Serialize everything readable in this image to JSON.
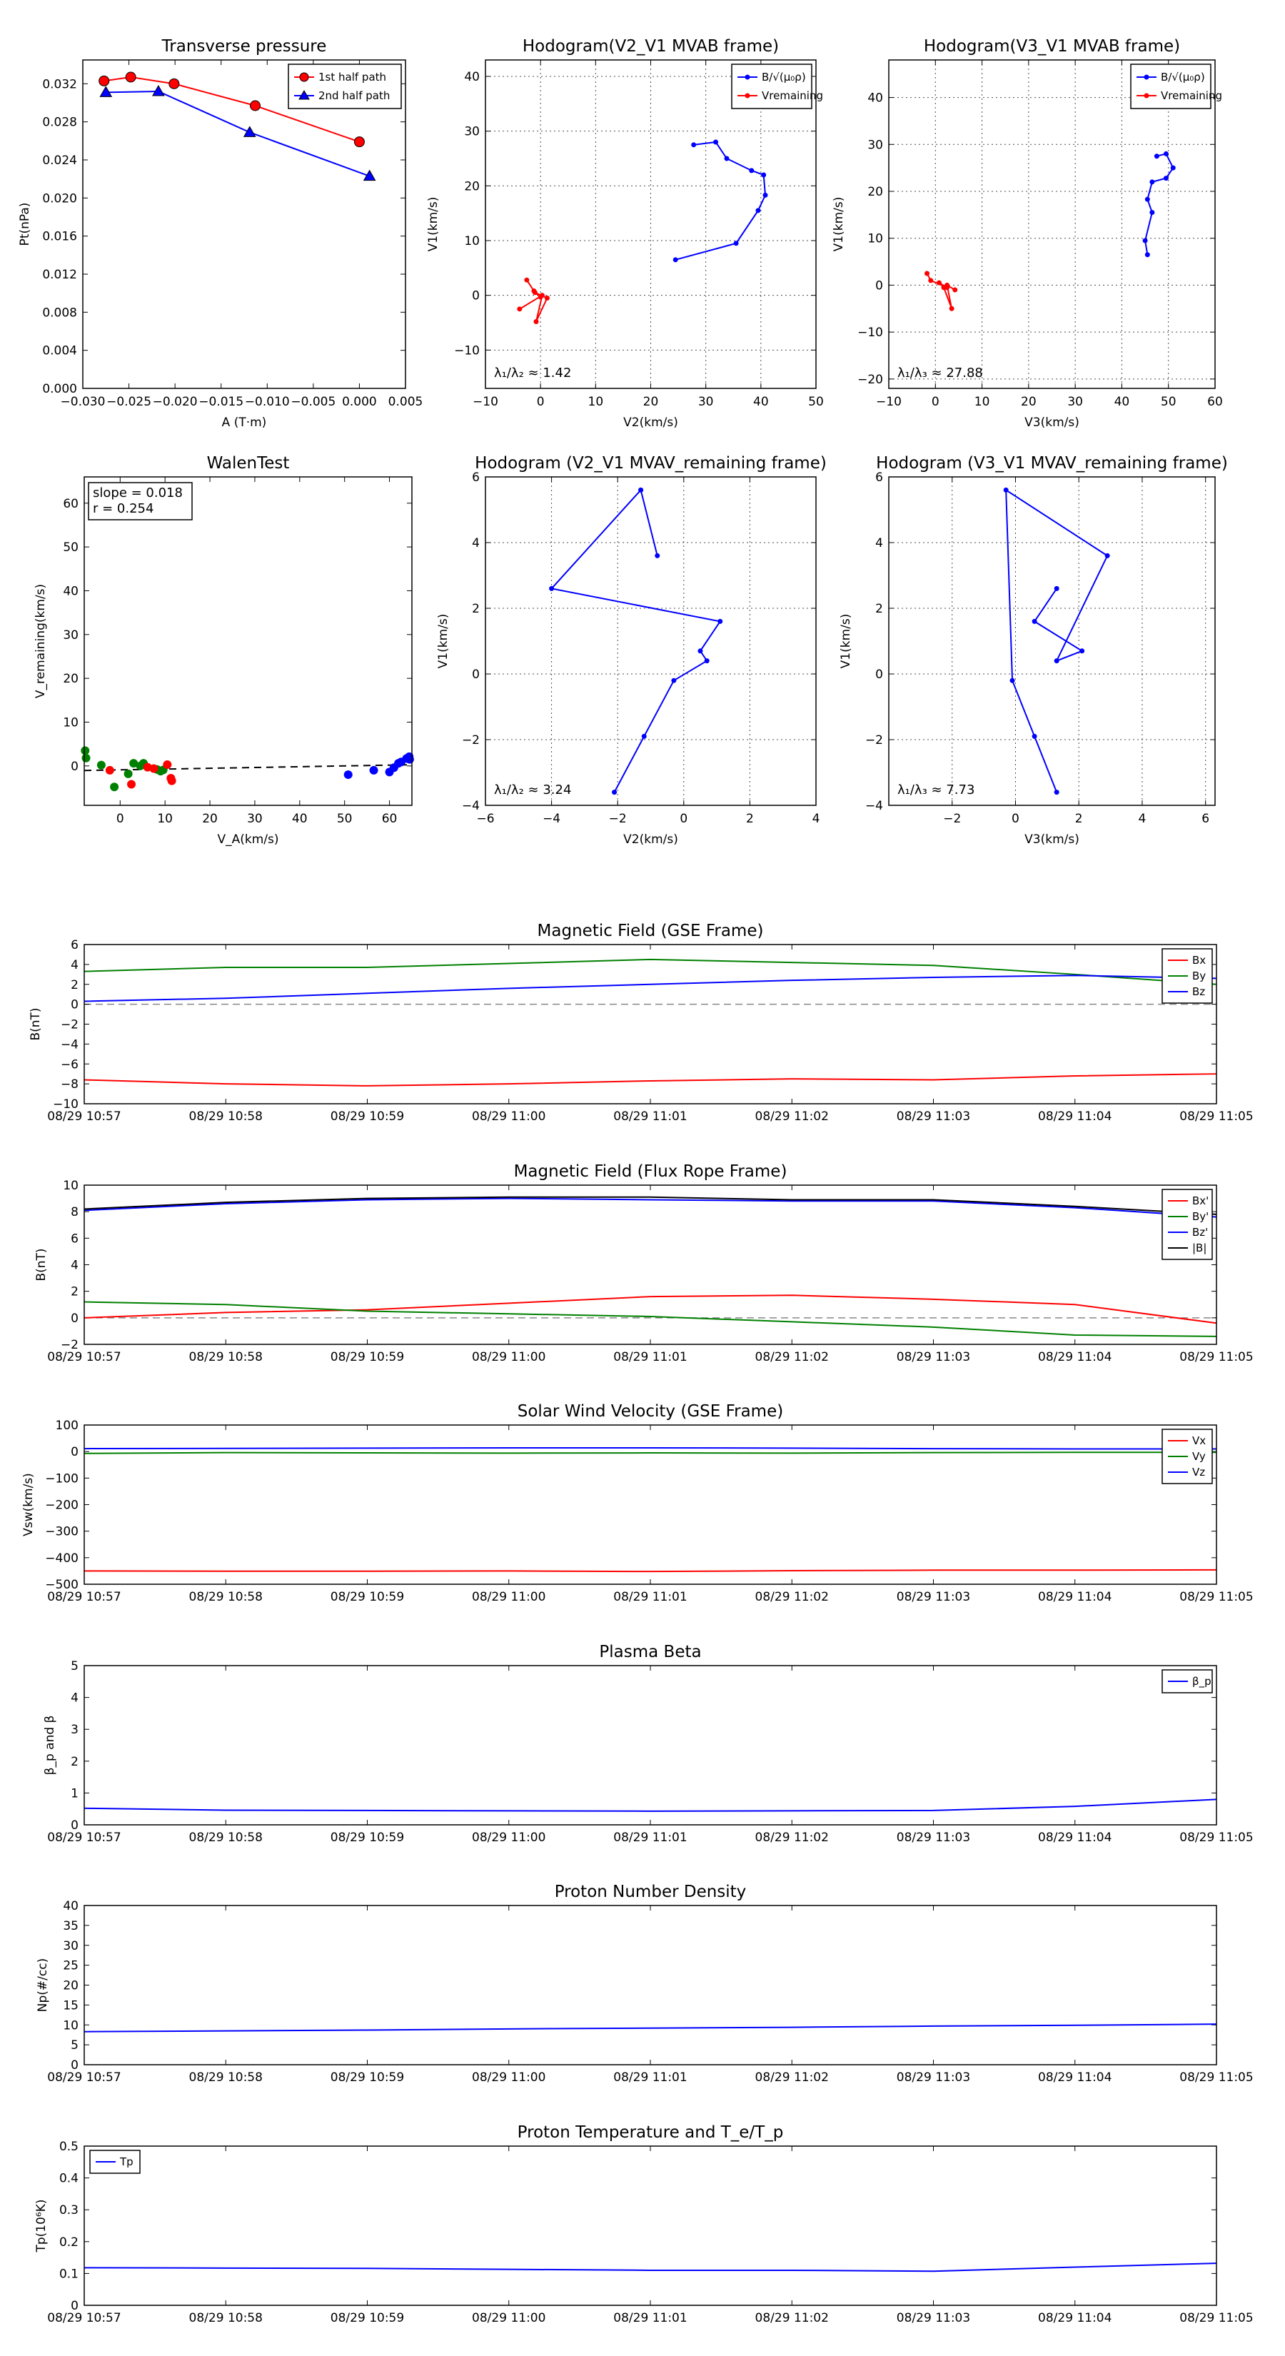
{
  "chart_data": [
    {
      "id": "tp",
      "type": "line",
      "title": "Transverse pressure",
      "xlabel": "A (T·m)",
      "ylabel": "Pt(nPa)",
      "xlim": [
        -0.03,
        0.005
      ],
      "ylim": [
        0.0,
        0.0345
      ],
      "xticks": [
        "−0.030",
        "−0.025",
        "−0.020",
        "−0.015",
        "−0.010",
        "−0.005",
        "0.000",
        "0.005"
      ],
      "xtick_values": [
        -0.03,
        -0.025,
        -0.02,
        -0.015,
        -0.01,
        -0.005,
        0.0,
        0.005
      ],
      "yticks": [
        "0.000",
        "0.004",
        "0.008",
        "0.012",
        "0.016",
        "0.020",
        "0.024",
        "0.028",
        "0.032"
      ],
      "ytick_values": [
        0.0,
        0.004,
        0.008,
        0.012,
        0.016,
        0.02,
        0.024,
        0.028,
        0.032
      ],
      "grid": false,
      "legend": "top-right",
      "series": [
        {
          "name": "1st half path",
          "color": "#ff0000",
          "marker": "circle",
          "x": [
            -0.0277,
            -0.0248,
            -0.0201,
            -0.0113,
            0.0
          ],
          "y": [
            0.0323,
            0.0327,
            0.032,
            0.0297,
            0.0259
          ]
        },
        {
          "name": "2nd half path",
          "color": "#0000ff",
          "marker": "triangle",
          "x": [
            -0.0275,
            -0.0218,
            -0.0119,
            0.0011
          ],
          "y": [
            0.0311,
            0.0312,
            0.0269,
            0.0223
          ]
        }
      ]
    },
    {
      "id": "hodo1",
      "type": "line",
      "title": "Hodogram(V2_V1 MVAB frame)",
      "xlabel": "V2(km/s)",
      "ylabel": "V1(km/s)",
      "xlim": [
        -10,
        50
      ],
      "ylim": [
        -17,
        43
      ],
      "xticks": [
        "−10",
        "0",
        "10",
        "20",
        "30",
        "40",
        "50"
      ],
      "xtick_values": [
        -10,
        0,
        10,
        20,
        30,
        40,
        50
      ],
      "yticks": [
        "−10",
        "0",
        "10",
        "20",
        "30",
        "40"
      ],
      "ytick_values": [
        -10,
        0,
        10,
        20,
        30,
        40
      ],
      "grid": true,
      "legend": "top-right",
      "annotation": "λ₁/λ₂ ≈ 1.42",
      "series": [
        {
          "name": "B/√(μ₀ρ)",
          "color": "#0000ff",
          "x": [
            24.5,
            35.5,
            39.5,
            40.8,
            40.5,
            38.3,
            33.8,
            31.8,
            27.8
          ],
          "y": [
            6.5,
            9.5,
            15.5,
            18.3,
            22.0,
            22.8,
            25.0,
            28.0,
            27.5
          ]
        },
        {
          "name": "Vremaining",
          "color": "#ff0000",
          "x": [
            -3.8,
            0.3,
            -0.8,
            1.2,
            -1.0,
            0.0,
            -1.2,
            -2.5
          ],
          "y": [
            -2.5,
            0.0,
            -4.8,
            -0.5,
            0.5,
            -0.3,
            0.8,
            2.8
          ]
        }
      ]
    },
    {
      "id": "hodo2",
      "type": "line",
      "title": "Hodogram(V3_V1 MVAB frame)",
      "xlabel": "V3(km/s)",
      "ylabel": "V1(km/s)",
      "xlim": [
        -10,
        60
      ],
      "ylim": [
        -22,
        48
      ],
      "xticks": [
        "−10",
        "0",
        "10",
        "20",
        "30",
        "40",
        "50",
        "60"
      ],
      "xtick_values": [
        -10,
        0,
        10,
        20,
        30,
        40,
        50,
        60
      ],
      "yticks": [
        "−20",
        "−10",
        "0",
        "10",
        "20",
        "30",
        "40"
      ],
      "ytick_values": [
        -20,
        -10,
        0,
        10,
        20,
        30,
        40
      ],
      "grid": true,
      "legend": "top-right",
      "annotation": "λ₁/λ₃ ≈ 27.88",
      "series": [
        {
          "name": "B/√(μ₀ρ)",
          "color": "#0000ff",
          "x": [
            45.5,
            45.0,
            46.5,
            45.5,
            46.5,
            49.5,
            51.0,
            49.5,
            47.5
          ],
          "y": [
            6.5,
            9.5,
            15.5,
            18.3,
            22.0,
            22.8,
            25.0,
            28.0,
            27.5
          ]
        },
        {
          "name": "Vremaining",
          "color": "#ff0000",
          "x": [
            4.2,
            2.5,
            3.5,
            1.8,
            0.8,
            2.5,
            -1.0,
            -1.8
          ],
          "y": [
            -1.0,
            0.0,
            -5.0,
            -0.5,
            0.5,
            -0.5,
            1.0,
            2.5
          ]
        }
      ]
    },
    {
      "id": "walen",
      "type": "scatter",
      "title": "WalenTest",
      "xlabel": "V_A(km/s)",
      "ylabel": "V_remaining(km/s)",
      "xlim": [
        -8,
        65
      ],
      "ylim": [
        -9,
        66
      ],
      "xticks": [
        "0",
        "10",
        "20",
        "30",
        "40",
        "50",
        "60"
      ],
      "xtick_values": [
        0,
        10,
        20,
        30,
        40,
        50,
        60
      ],
      "yticks": [
        "0",
        "10",
        "20",
        "30",
        "40",
        "50",
        "60"
      ],
      "ytick_values": [
        0,
        10,
        20,
        30,
        40,
        50,
        60
      ],
      "grid": false,
      "annotation": [
        "slope = 0.018",
        "r = 0.254"
      ],
      "fit": {
        "slope": 0.018,
        "intercept": -0.9
      },
      "series": [
        {
          "color": "#008000",
          "x": [
            -7.8,
            -7.6,
            -4.2,
            -1.3,
            1.8,
            3.0,
            4.5,
            5.2,
            8.2,
            9.0,
            9.6
          ],
          "y": [
            3.5,
            1.8,
            0.2,
            -4.8,
            -1.8,
            0.6,
            0.0,
            0.6,
            -0.8,
            -1.2,
            -0.9
          ]
        },
        {
          "color": "#ff0000",
          "x": [
            -2.3,
            2.5,
            6.1,
            7.5,
            10.5,
            11.3,
            11.5
          ],
          "y": [
            -1.0,
            -4.2,
            -0.3,
            -0.6,
            0.3,
            -2.8,
            -3.4
          ]
        },
        {
          "color": "#0000ff",
          "x": [
            50.8,
            56.5,
            60.0,
            61.0,
            62.0,
            62.6,
            63.8,
            64.4,
            64.5
          ],
          "y": [
            -2.0,
            -1.0,
            -1.4,
            -0.4,
            0.6,
            0.9,
            1.7,
            2.1,
            1.5
          ]
        }
      ]
    },
    {
      "id": "hodo3",
      "type": "line",
      "title": "Hodogram (V2_V1 MVAV_remaining frame)",
      "xlabel": "V2(km/s)",
      "ylabel": "V1(km/s)",
      "xlim": [
        -6,
        4
      ],
      "ylim": [
        -4,
        6
      ],
      "xticks": [
        "−6",
        "−4",
        "−2",
        "0",
        "2",
        "4"
      ],
      "xtick_values": [
        -6,
        -4,
        -2,
        0,
        2,
        4
      ],
      "yticks": [
        "−4",
        "−2",
        "0",
        "2",
        "4",
        "6"
      ],
      "ytick_values": [
        -4,
        -2,
        0,
        2,
        4,
        6
      ],
      "grid": true,
      "annotation": "λ₁/λ₂ ≈ 3.24",
      "series": [
        {
          "color": "#0000ff",
          "x": [
            -2.1,
            -1.2,
            -0.3,
            0.7,
            0.5,
            1.1,
            -4.0,
            -1.3,
            -0.8,
            -1.3
          ],
          "y": [
            -3.6,
            -1.9,
            -0.2,
            0.4,
            0.7,
            1.6,
            2.6,
            5.6,
            3.6,
            5.6
          ]
        }
      ]
    },
    {
      "id": "hodo4",
      "type": "line",
      "title": "Hodogram (V3_V1 MVAV_remaining frame)",
      "xlabel": "V3(km/s)",
      "ylabel": "V1(km/s)",
      "xlim": [
        -4,
        6.3
      ],
      "ylim": [
        -4,
        6
      ],
      "xticks": [
        "−2",
        "0",
        "2",
        "4",
        "6"
      ],
      "xtick_values": [
        -2,
        0,
        2,
        4,
        6
      ],
      "yticks": [
        "−4",
        "−2",
        "0",
        "2",
        "4",
        "6"
      ],
      "ytick_values": [
        -4,
        -2,
        0,
        2,
        4,
        6
      ],
      "grid": true,
      "annotation": "λ₁/λ₃ ≈ 7.73",
      "series": [
        {
          "color": "#0000ff",
          "x": [
            1.3,
            0.6,
            -0.1,
            -0.3,
            2.9,
            1.3,
            2.1,
            0.6,
            1.3
          ],
          "y": [
            -3.6,
            -1.9,
            -0.2,
            5.6,
            3.6,
            0.4,
            0.7,
            1.6,
            2.6
          ]
        }
      ]
    },
    {
      "id": "mag_gse",
      "type": "line",
      "title": "Magnetic Field (GSE Frame)",
      "ylabel": "B(nT)",
      "xticks": [
        "08/29 10:57",
        "08/29 10:58",
        "08/29 10:59",
        "08/29 11:00",
        "08/29 11:01",
        "08/29 11:02",
        "08/29 11:03",
        "08/29 11:04",
        "08/29 11:05"
      ],
      "xlim": [
        0,
        8
      ],
      "ylim": [
        -10,
        6
      ],
      "yticks": [
        "−10",
        "−8",
        "−6",
        "−4",
        "−2",
        "0",
        "2",
        "4",
        "6"
      ],
      "ytick_values": [
        -10,
        -8,
        -6,
        -4,
        -2,
        0,
        2,
        4,
        6
      ],
      "grid": false,
      "zero_line": true,
      "legend": "top-right",
      "series": [
        {
          "name": "Bx",
          "color": "#ff0000",
          "x": [
            0,
            1,
            2,
            3,
            4,
            5,
            6,
            7,
            8
          ],
          "y": [
            -7.6,
            -8.0,
            -8.2,
            -8.0,
            -7.7,
            -7.5,
            -7.6,
            -7.2,
            -7.0
          ]
        },
        {
          "name": "By",
          "color": "#008000",
          "x": [
            0,
            1,
            2,
            3,
            4,
            5,
            6,
            7,
            8
          ],
          "y": [
            3.3,
            3.7,
            3.7,
            4.1,
            4.5,
            4.2,
            3.9,
            3.0,
            2.0
          ]
        },
        {
          "name": "Bz",
          "color": "#0000ff",
          "x": [
            0,
            1,
            2,
            3,
            4,
            5,
            6,
            7,
            8
          ],
          "y": [
            0.3,
            0.6,
            1.1,
            1.6,
            2.0,
            2.4,
            2.7,
            2.9,
            2.6
          ]
        }
      ]
    },
    {
      "id": "mag_fr",
      "type": "line",
      "title": "Magnetic Field (Flux Rope Frame)",
      "ylabel": "B(nT)",
      "xticks": [
        "08/29 10:57",
        "08/29 10:58",
        "08/29 10:59",
        "08/29 11:00",
        "08/29 11:01",
        "08/29 11:02",
        "08/29 11:03",
        "08/29 11:04",
        "08/29 11:05"
      ],
      "xlim": [
        0,
        8
      ],
      "ylim": [
        -2,
        10
      ],
      "yticks": [
        "−2",
        "0",
        "2",
        "4",
        "6",
        "8",
        "10"
      ],
      "ytick_values": [
        -2,
        0,
        2,
        4,
        6,
        8,
        10
      ],
      "grid": false,
      "zero_line": true,
      "legend": "top-right",
      "series": [
        {
          "name": "Bx'",
          "color": "#ff0000",
          "x": [
            0,
            1,
            2,
            3,
            4,
            5,
            6,
            7,
            8
          ],
          "y": [
            0.0,
            0.4,
            0.6,
            1.1,
            1.6,
            1.7,
            1.4,
            1.0,
            -0.4
          ]
        },
        {
          "name": "By'",
          "color": "#008000",
          "x": [
            0,
            1,
            2,
            3,
            4,
            5,
            6,
            7,
            8
          ],
          "y": [
            1.2,
            1.0,
            0.5,
            0.3,
            0.1,
            -0.3,
            -0.7,
            -1.3,
            -1.4
          ]
        },
        {
          "name": "Bz'",
          "color": "#0000ff",
          "x": [
            0,
            1,
            2,
            3,
            4,
            5,
            6,
            7,
            8
          ],
          "y": [
            8.1,
            8.6,
            8.9,
            9.0,
            8.9,
            8.8,
            8.8,
            8.3,
            7.6
          ]
        },
        {
          "name": "|B|",
          "color": "#000000",
          "x": [
            0,
            1,
            2,
            3,
            4,
            5,
            6,
            7,
            8
          ],
          "y": [
            8.2,
            8.7,
            9.0,
            9.1,
            9.1,
            8.9,
            8.9,
            8.4,
            7.8
          ]
        }
      ]
    },
    {
      "id": "vsw",
      "type": "line",
      "title": "Solar Wind Velocity (GSE Frame)",
      "ylabel": "Vsw(km/s)",
      "xticks": [
        "08/29 10:57",
        "08/29 10:58",
        "08/29 10:59",
        "08/29 11:00",
        "08/29 11:01",
        "08/29 11:02",
        "08/29 11:03",
        "08/29 11:04",
        "08/29 11:05"
      ],
      "xlim": [
        0,
        8
      ],
      "ylim": [
        -500,
        100
      ],
      "yticks": [
        "−500",
        "−400",
        "−300",
        "−200",
        "−100",
        "0",
        "100"
      ],
      "ytick_values": [
        -500,
        -400,
        -300,
        -200,
        -100,
        0,
        100
      ],
      "grid": false,
      "legend": "top-right",
      "series": [
        {
          "name": "Vx",
          "color": "#ff0000",
          "x": [
            0,
            1,
            2,
            3,
            4,
            5,
            6,
            7,
            8
          ],
          "y": [
            -450,
            -451,
            -451,
            -450,
            -452,
            -449,
            -447,
            -447,
            -446
          ]
        },
        {
          "name": "Vy",
          "color": "#008000",
          "x": [
            0,
            1,
            2,
            3,
            4,
            5,
            6,
            7,
            8
          ],
          "y": [
            -7,
            -4,
            -5,
            -6,
            -5,
            -6,
            -4,
            -3,
            -3
          ]
        },
        {
          "name": "Vz",
          "color": "#0000ff",
          "x": [
            0,
            1,
            2,
            3,
            4,
            5,
            6,
            7,
            8
          ],
          "y": [
            11,
            12,
            13,
            14,
            14,
            13,
            11,
            10,
            10
          ]
        }
      ]
    },
    {
      "id": "beta",
      "type": "line",
      "title": "Plasma Beta",
      "ylabel": "β_p and β",
      "xticks": [
        "08/29 10:57",
        "08/29 10:58",
        "08/29 10:59",
        "08/29 11:00",
        "08/29 11:01",
        "08/29 11:02",
        "08/29 11:03",
        "08/29 11:04",
        "08/29 11:05"
      ],
      "xlim": [
        0,
        8
      ],
      "ylim": [
        0,
        5
      ],
      "yticks": [
        "0",
        "1",
        "2",
        "3",
        "4",
        "5"
      ],
      "ytick_values": [
        0,
        1,
        2,
        3,
        4,
        5
      ],
      "grid": false,
      "legend": "top-right",
      "series": [
        {
          "name": "β_p",
          "color": "#0000ff",
          "x": [
            0,
            1,
            2,
            3,
            4,
            5,
            6,
            7,
            8
          ],
          "y": [
            0.52,
            0.46,
            0.45,
            0.44,
            0.43,
            0.44,
            0.45,
            0.58,
            0.8
          ]
        }
      ]
    },
    {
      "id": "np",
      "type": "line",
      "title": "Proton Number Density",
      "ylabel": "Np(#/cc)",
      "xticks": [
        "08/29 10:57",
        "08/29 10:58",
        "08/29 10:59",
        "08/29 11:00",
        "08/29 11:01",
        "08/29 11:02",
        "08/29 11:03",
        "08/29 11:04",
        "08/29 11:05"
      ],
      "xlim": [
        0,
        8
      ],
      "ylim": [
        0,
        40
      ],
      "yticks": [
        "0",
        "5",
        "10",
        "15",
        "20",
        "25",
        "30",
        "35",
        "40"
      ],
      "ytick_values": [
        0,
        5,
        10,
        15,
        20,
        25,
        30,
        35,
        40
      ],
      "grid": false,
      "series": [
        {
          "color": "#0000ff",
          "x": [
            0,
            1,
            2,
            3,
            4,
            5,
            6,
            7,
            8
          ],
          "y": [
            8.3,
            8.5,
            8.7,
            9.0,
            9.2,
            9.4,
            9.7,
            9.9,
            10.2
          ]
        }
      ]
    },
    {
      "id": "tp_temp",
      "type": "line",
      "title": "Proton Temperature and T_e/T_p",
      "ylabel": "Tp(10⁶K)",
      "xticks": [
        "08/29 10:57",
        "08/29 10:58",
        "08/29 10:59",
        "08/29 11:00",
        "08/29 11:01",
        "08/29 11:02",
        "08/29 11:03",
        "08/29 11:04",
        "08/29 11:05"
      ],
      "xlim": [
        0,
        8
      ],
      "ylim": [
        0,
        0.5
      ],
      "yticks": [
        "0",
        "0.1",
        "0.2",
        "0.3",
        "0.4",
        "0.5"
      ],
      "ytick_values": [
        0,
        0.1,
        0.2,
        0.3,
        0.4,
        0.5
      ],
      "grid": false,
      "legend": "top-left",
      "series": [
        {
          "name": "Tp",
          "color": "#0000ff",
          "x": [
            0,
            1,
            2,
            3,
            4,
            5,
            6,
            7,
            8
          ],
          "y": [
            0.118,
            0.117,
            0.116,
            0.113,
            0.11,
            0.11,
            0.107,
            0.12,
            0.132
          ]
        }
      ]
    }
  ]
}
